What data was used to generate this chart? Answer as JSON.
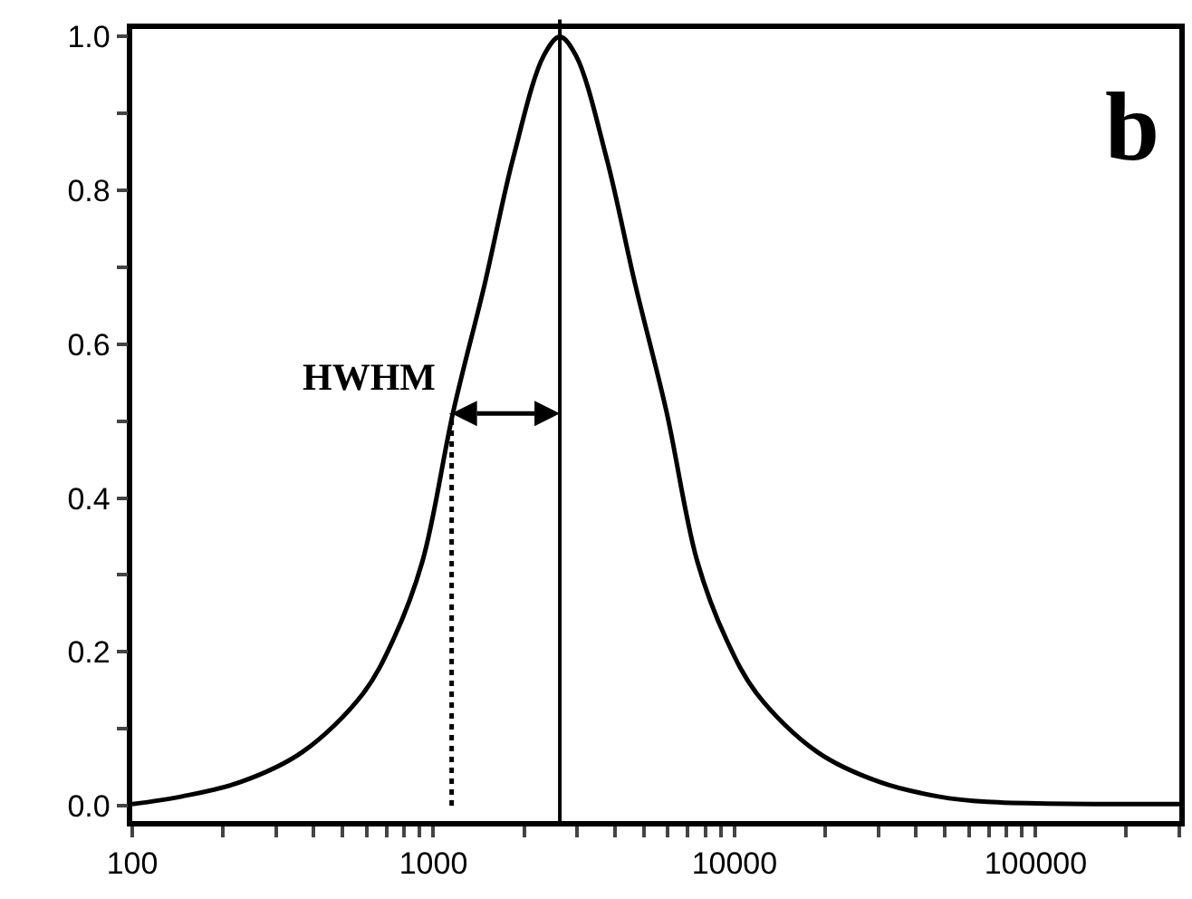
{
  "chart_data": {
    "type": "line",
    "log": "x",
    "grid": false,
    "marker": "none",
    "xlim": [
      100,
      300000
    ],
    "ylim": [
      -0.02,
      1.01
    ],
    "xticks": [
      100,
      {
        "value": 200,
        "label": null
      },
      {
        "value": 300,
        "label": null
      },
      {
        "value": 400,
        "label": null
      },
      {
        "value": 500,
        "label": null
      },
      {
        "value": 600,
        "label": null
      },
      {
        "value": 700,
        "label": null
      },
      {
        "value": 800,
        "label": null
      },
      {
        "value": 900,
        "label": null
      },
      1000,
      {
        "value": 2000,
        "label": null
      },
      {
        "value": 3000,
        "label": null
      },
      {
        "value": 4000,
        "label": null
      },
      {
        "value": 5000,
        "label": null
      },
      {
        "value": 6000,
        "label": null
      },
      {
        "value": 7000,
        "label": null
      },
      {
        "value": 8000,
        "label": null
      },
      {
        "value": 9000,
        "label": null
      },
      10000,
      {
        "value": 20000,
        "label": null
      },
      {
        "value": 30000,
        "label": null
      },
      {
        "value": 40000,
        "label": null
      },
      {
        "value": 50000,
        "label": null
      },
      {
        "value": 60000,
        "label": null
      },
      {
        "value": 70000,
        "label": null
      },
      {
        "value": 80000,
        "label": null
      },
      {
        "value": 90000,
        "label": null
      },
      100000,
      {
        "value": 200000,
        "label": null
      },
      {
        "value": 300000,
        "label": null
      }
    ],
    "yticks": [
      {
        "value": 0,
        "label": "0.0"
      },
      {
        "value": 0.1,
        "label": null
      },
      {
        "value": 0.2,
        "label": "0.2"
      },
      {
        "value": 0.3,
        "label": null
      },
      {
        "value": 0.4,
        "label": "0.4"
      },
      {
        "value": 0.5,
        "label": null
      },
      {
        "value": 0.6,
        "label": "0.6"
      },
      {
        "value": 0.7,
        "label": null
      },
      {
        "value": 0.8,
        "label": "0.8"
      },
      {
        "value": 0.9,
        "label": null
      },
      {
        "value": 1,
        "label": "1.0"
      }
    ],
    "series": [
      {
        "color": "#000000",
        "line_style": "solid",
        "x": [
          100,
          146,
          230,
          368,
          582,
          736,
          920,
          1165,
          1480,
          1840,
          2330,
          2630,
          2970,
          3760,
          4680,
          5940,
          7520,
          9400,
          11900,
          18800,
          30200,
          47500,
          69000,
          300000
        ],
        "values": [
          0.002,
          0.012,
          0.031,
          0.07,
          0.145,
          0.216,
          0.318,
          0.513,
          0.678,
          0.842,
          0.976,
          1.0,
          0.976,
          0.842,
          0.678,
          0.513,
          0.318,
          0.216,
          0.145,
          0.07,
          0.031,
          0.012,
          0.005,
          0.002
        ]
      },
      {
        "color": "#000000",
        "line_style": "dotted",
        "x": [
          1150,
          1150
        ],
        "values": [
          0,
          0.51
        ]
      }
    ],
    "ref_lines": [
      {
        "axis": "x",
        "value": 2630,
        "color": "#000000",
        "line_style": "solid"
      }
    ],
    "annotations": [
      "HWHM",
      "b"
    ]
  }
}
